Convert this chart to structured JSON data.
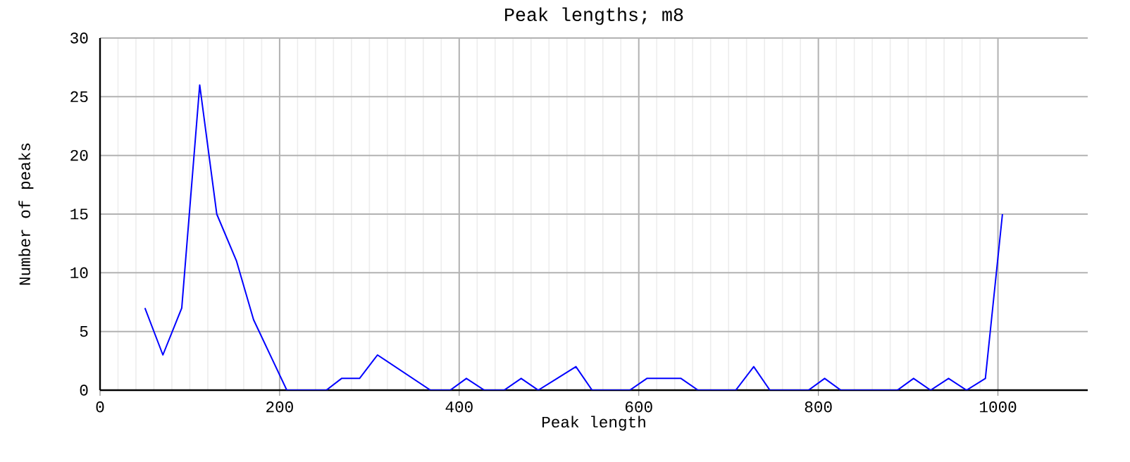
{
  "chart_data": {
    "type": "line",
    "title": "Peak lengths; m8",
    "xlabel": "Peak length",
    "ylabel": "Number of peaks",
    "x": [
      50,
      70,
      91,
      111,
      130,
      152,
      171,
      208,
      252,
      269,
      289,
      309,
      368,
      390,
      408,
      428,
      450,
      469,
      488,
      509,
      530,
      548,
      590,
      609,
      628,
      647,
      666,
      708,
      728,
      746,
      789,
      807,
      825,
      888,
      906,
      925,
      945,
      965,
      986,
      1005
    ],
    "series": [
      {
        "color": "#0000ff",
        "values": [
          7,
          3,
          7,
          26,
          15,
          11,
          6,
          0,
          0,
          1,
          1,
          3,
          0,
          0,
          1,
          0,
          0,
          1,
          0,
          1,
          2,
          0,
          0,
          1,
          1,
          1,
          0,
          0,
          2,
          0,
          0,
          1,
          0,
          0,
          1,
          0,
          1,
          0,
          1,
          15
        ]
      }
    ],
    "xlim": [
      0,
      1100
    ],
    "ylim": [
      0,
      30
    ],
    "xticks": [
      0,
      200,
      400,
      600,
      800,
      1000
    ],
    "yticks": [
      0,
      5,
      10,
      15,
      20,
      25,
      30
    ],
    "grid": true,
    "marker": "none",
    "line_style": "solid"
  }
}
